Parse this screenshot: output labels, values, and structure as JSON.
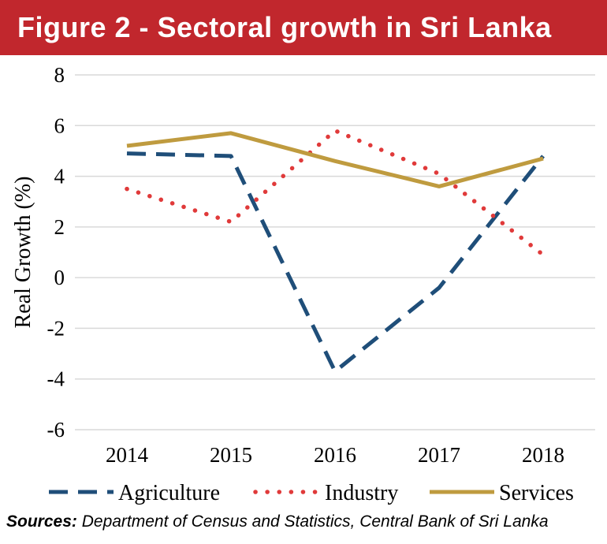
{
  "title": "Figure 2 - Sectoral growth in Sri Lanka",
  "sources": {
    "label": "Sources:",
    "text": "Department of Census and Statistics, Central Bank of Sri Lanka"
  },
  "chart_data": {
    "type": "line",
    "x": [
      "2014",
      "2015",
      "2016",
      "2017",
      "2018"
    ],
    "ylabel": "Real Growth (%)",
    "xlabel": "",
    "ylim": [
      -6,
      8
    ],
    "yticks": [
      8,
      6,
      4,
      2,
      0,
      -2,
      -4,
      -6
    ],
    "grid": true,
    "legend_position": "bottom",
    "series": [
      {
        "name": "Agriculture",
        "values": [
          4.9,
          4.8,
          -3.7,
          -0.4,
          4.8
        ],
        "color": "#1f4e79",
        "style": "dashed"
      },
      {
        "name": "Industry",
        "values": [
          3.5,
          2.2,
          5.8,
          4.1,
          0.9
        ],
        "color": "#e03a3a",
        "style": "dotted"
      },
      {
        "name": "Services",
        "values": [
          5.2,
          5.7,
          4.6,
          3.6,
          4.7
        ],
        "color": "#bf9b3f",
        "style": "solid"
      }
    ]
  }
}
